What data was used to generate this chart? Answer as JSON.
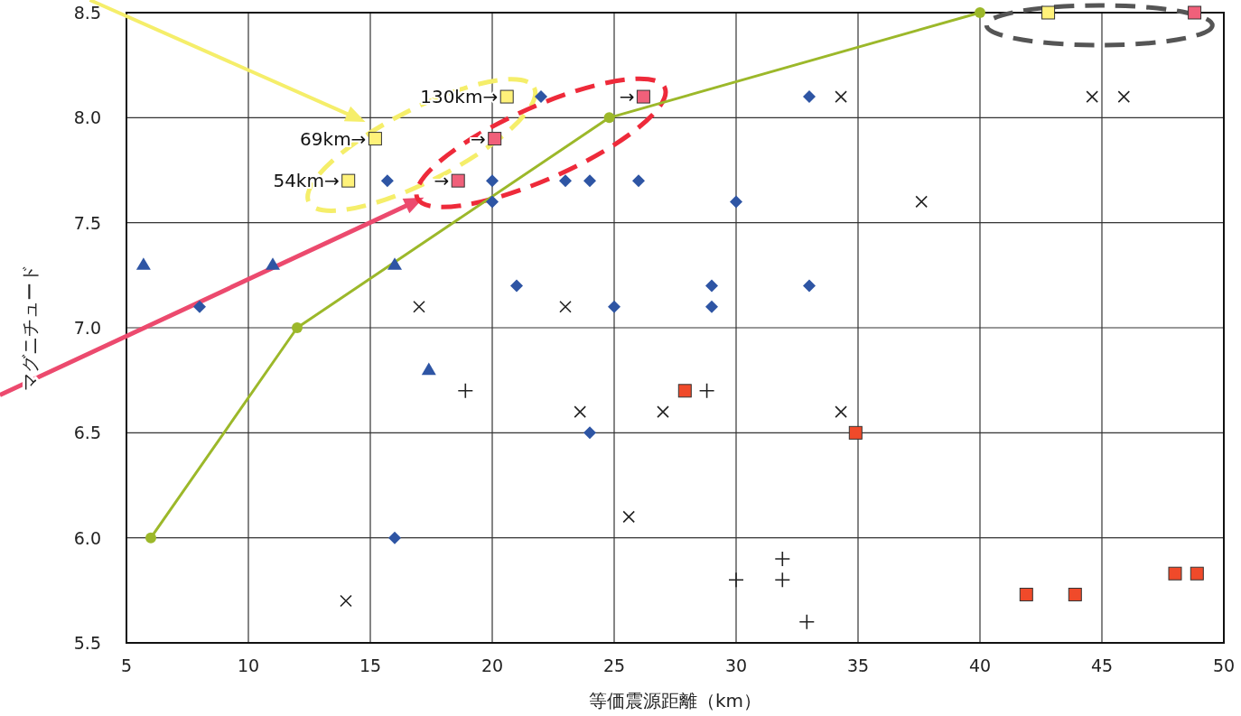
{
  "chart_data": {
    "type": "scatter",
    "xlabel": "等価震源距離（km）",
    "ylabel": "マグニチュード",
    "xlim": [
      5,
      50
    ],
    "ylim": [
      5.5,
      8.5
    ],
    "xticks": [
      5,
      10,
      15,
      20,
      25,
      30,
      35,
      40,
      45,
      50
    ],
    "yticks": [
      {
        "value": 5.5,
        "label": "5.5"
      },
      {
        "value": 6,
        "label": "6.0"
      },
      {
        "value": 6.5,
        "label": "6.5"
      },
      {
        "value": 7,
        "label": "7.0"
      },
      {
        "value": 7.5,
        "label": "7.5"
      },
      {
        "value": 8,
        "label": "8.0"
      },
      {
        "value": 8.5,
        "label": "8.5"
      }
    ],
    "grid": true,
    "series": [
      {
        "type": "line",
        "marker": "circle",
        "color": "#9cb82a",
        "x": [
          6,
          12,
          24.8,
          40
        ],
        "values": [
          6.0,
          7.0,
          8.0,
          8.5
        ]
      },
      {
        "type": "scatter",
        "marker": "diamond",
        "color": "#2e55a4",
        "x": [
          8,
          15.7,
          22,
          20,
          20,
          21,
          23,
          24,
          26,
          25,
          29,
          29,
          30,
          33,
          33,
          24,
          16
        ],
        "values": [
          7.1,
          7.7,
          8.1,
          7.7,
          7.6,
          7.2,
          7.7,
          7.7,
          7.7,
          7.1,
          7.2,
          7.1,
          7.6,
          8.1,
          7.2,
          6.5,
          6.0
        ]
      },
      {
        "type": "scatter",
        "marker": "triangle",
        "color": "#2e55a4",
        "x": [
          5.7,
          11,
          16,
          17.4
        ],
        "values": [
          7.3,
          7.3,
          7.3,
          6.8
        ]
      },
      {
        "type": "scatter",
        "marker": "cross",
        "color": "#222222",
        "x": [
          14,
          17,
          23,
          23.6,
          27,
          25.6,
          34.3,
          34.3,
          37.6,
          44.6,
          45.9
        ],
        "values": [
          5.7,
          7.1,
          7.1,
          6.6,
          6.6,
          6.1,
          6.6,
          8.1,
          7.6,
          8.1,
          8.1
        ]
      },
      {
        "type": "scatter",
        "marker": "plus",
        "color": "#222222",
        "x": [
          18.9,
          28.8,
          30,
          31.9,
          31.9,
          32.9
        ],
        "values": [
          6.7,
          6.7,
          5.8,
          5.9,
          5.8,
          5.6
        ]
      },
      {
        "type": "scatter",
        "marker": "square",
        "color": "#f04a2a",
        "x": [
          27.9,
          34.9,
          41.9,
          43.9,
          48,
          48.9
        ],
        "values": [
          6.7,
          6.5,
          5.73,
          5.73,
          5.83,
          5.83
        ]
      },
      {
        "type": "scatter",
        "marker": "square",
        "color": "#fff27a",
        "x": [
          14.1,
          15.2,
          20.6,
          42.8
        ],
        "values": [
          7.7,
          7.9,
          8.1,
          8.5
        ]
      },
      {
        "type": "scatter",
        "marker": "square",
        "color": "#f0607a",
        "x": [
          18.6,
          20.1,
          26.2,
          48.8
        ],
        "values": [
          7.7,
          7.9,
          8.1,
          8.5
        ]
      }
    ],
    "annotations": [
      {
        "text": "54km→",
        "x": 14.1,
        "y": 7.7
      },
      {
        "text": "69km→",
        "x": 15.2,
        "y": 7.9
      },
      {
        "text": "130km→",
        "x": 20.6,
        "y": 8.1
      },
      {
        "text": "→",
        "x": 18.6,
        "y": 7.7
      },
      {
        "text": "→",
        "x": 20.1,
        "y": 7.9
      },
      {
        "text": "→",
        "x": 26.2,
        "y": 8.1
      }
    ]
  }
}
